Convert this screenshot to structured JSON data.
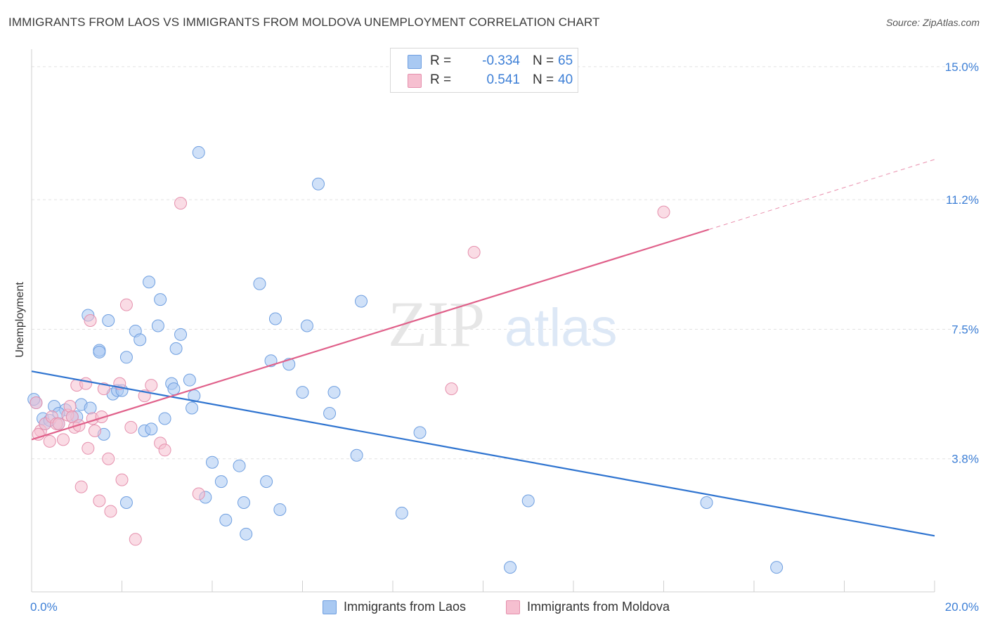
{
  "title": "IMMIGRANTS FROM LAOS VS IMMIGRANTS FROM MOLDOVA UNEMPLOYMENT CORRELATION CHART",
  "source": "Source: ZipAtlas.com",
  "watermark": {
    "zip": "ZIP",
    "atlas": "atlas"
  },
  "legend": {
    "r_label": "R =",
    "n_label": "N =",
    "rows": [
      {
        "r": "-0.334",
        "n": "65",
        "color": "#a9c9f2",
        "border": "#6f9fe0"
      },
      {
        "r": "0.541",
        "n": "40",
        "color": "#f6bfd0",
        "border": "#e590ad"
      }
    ]
  },
  "chart_data": {
    "type": "scatter",
    "title": "IMMIGRANTS FROM LAOS VS IMMIGRANTS FROM MOLDOVA UNEMPLOYMENT CORRELATION CHART",
    "xlabel": "",
    "ylabel": "Unemployment",
    "xlim": [
      0,
      20
    ],
    "ylim": [
      0,
      15.5
    ],
    "x_tick_labels": [
      {
        "value": 0,
        "label": "0.0%"
      },
      {
        "value": 20,
        "label": "20.0%"
      }
    ],
    "y_tick_labels": [
      {
        "value": 3.8,
        "label": "3.8%"
      },
      {
        "value": 7.5,
        "label": "7.5%"
      },
      {
        "value": 11.2,
        "label": "11.2%"
      },
      {
        "value": 15.0,
        "label": "15.0%"
      }
    ],
    "grid": "horizontal dashed",
    "legend_placement": "top-center",
    "series": [
      {
        "name": "Immigrants from Laos",
        "color": "#a9c9f2",
        "stroke": "#6f9fe0",
        "line_color": "#2f74d0",
        "trend": {
          "x": [
            0,
            20
          ],
          "y": [
            6.3,
            1.6
          ]
        },
        "points": [
          [
            0.1,
            5.4
          ],
          [
            0.25,
            4.95
          ],
          [
            0.3,
            4.8
          ],
          [
            0.5,
            5.3
          ],
          [
            0.6,
            4.8
          ],
          [
            0.75,
            5.2
          ],
          [
            0.9,
            5.0
          ],
          [
            1.1,
            5.35
          ],
          [
            1.3,
            5.25
          ],
          [
            1.6,
            4.5
          ],
          [
            1.25,
            7.9
          ],
          [
            1.7,
            7.75
          ],
          [
            1.5,
            6.9
          ],
          [
            1.5,
            6.85
          ],
          [
            1.8,
            5.65
          ],
          [
            1.9,
            5.75
          ],
          [
            2.0,
            5.75
          ],
          [
            2.1,
            6.7
          ],
          [
            2.3,
            7.45
          ],
          [
            2.4,
            7.2
          ],
          [
            2.6,
            8.85
          ],
          [
            2.85,
            8.35
          ],
          [
            2.8,
            7.6
          ],
          [
            2.5,
            4.6
          ],
          [
            2.65,
            4.65
          ],
          [
            2.95,
            4.95
          ],
          [
            3.1,
            5.95
          ],
          [
            3.15,
            5.8
          ],
          [
            3.2,
            6.95
          ],
          [
            3.3,
            7.35
          ],
          [
            3.5,
            6.05
          ],
          [
            3.55,
            5.25
          ],
          [
            3.6,
            5.6
          ],
          [
            3.7,
            12.55
          ],
          [
            3.85,
            2.7
          ],
          [
            4.0,
            3.7
          ],
          [
            4.2,
            3.15
          ],
          [
            4.3,
            2.05
          ],
          [
            4.6,
            3.6
          ],
          [
            4.7,
            2.55
          ],
          [
            4.75,
            1.65
          ],
          [
            5.05,
            8.8
          ],
          [
            5.2,
            3.15
          ],
          [
            5.3,
            6.6
          ],
          [
            5.4,
            7.8
          ],
          [
            5.5,
            2.35
          ],
          [
            5.7,
            6.5
          ],
          [
            6.0,
            5.7
          ],
          [
            6.1,
            7.6
          ],
          [
            6.35,
            11.65
          ],
          [
            6.6,
            5.1
          ],
          [
            6.7,
            5.7
          ],
          [
            7.2,
            3.9
          ],
          [
            7.3,
            8.3
          ],
          [
            8.2,
            2.25
          ],
          [
            8.6,
            4.55
          ],
          [
            10.6,
            0.7
          ],
          [
            11.0,
            2.6
          ],
          [
            14.95,
            2.55
          ],
          [
            16.5,
            0.7
          ],
          [
            2.1,
            2.55
          ],
          [
            0.4,
            4.9
          ],
          [
            1.0,
            5.0
          ],
          [
            0.6,
            5.1
          ],
          [
            0.05,
            5.5
          ]
        ]
      },
      {
        "name": "Immigrants from Moldova",
        "color": "#f6bfd0",
        "stroke": "#e590ad",
        "line_color": "#e0608a",
        "trend": {
          "x": [
            0,
            15
          ],
          "y": [
            4.35,
            10.35
          ]
        },
        "trend_dashed": {
          "x": [
            15,
            20
          ],
          "y": [
            10.35,
            12.35
          ]
        },
        "points": [
          [
            0.1,
            5.4
          ],
          [
            0.2,
            4.6
          ],
          [
            0.3,
            4.8
          ],
          [
            0.4,
            4.3
          ],
          [
            0.45,
            5.0
          ],
          [
            0.55,
            4.8
          ],
          [
            0.7,
            4.35
          ],
          [
            0.8,
            5.05
          ],
          [
            0.85,
            5.3
          ],
          [
            0.95,
            4.7
          ],
          [
            1.0,
            5.9
          ],
          [
            1.1,
            3.0
          ],
          [
            1.2,
            5.95
          ],
          [
            1.25,
            4.1
          ],
          [
            1.3,
            7.75
          ],
          [
            1.35,
            4.95
          ],
          [
            1.4,
            4.6
          ],
          [
            1.5,
            2.6
          ],
          [
            1.55,
            5.0
          ],
          [
            1.6,
            5.8
          ],
          [
            1.7,
            3.8
          ],
          [
            1.75,
            2.3
          ],
          [
            1.95,
            5.95
          ],
          [
            2.0,
            3.2
          ],
          [
            2.1,
            8.2
          ],
          [
            2.2,
            4.7
          ],
          [
            2.3,
            1.5
          ],
          [
            2.5,
            5.6
          ],
          [
            2.65,
            5.9
          ],
          [
            2.85,
            4.25
          ],
          [
            2.95,
            4.05
          ],
          [
            3.3,
            11.1
          ],
          [
            3.7,
            2.8
          ],
          [
            9.3,
            5.8
          ],
          [
            9.8,
            9.7
          ],
          [
            14.0,
            10.85
          ],
          [
            0.6,
            4.8
          ],
          [
            0.9,
            5.0
          ],
          [
            1.05,
            4.75
          ],
          [
            0.15,
            4.5
          ]
        ]
      }
    ]
  }
}
